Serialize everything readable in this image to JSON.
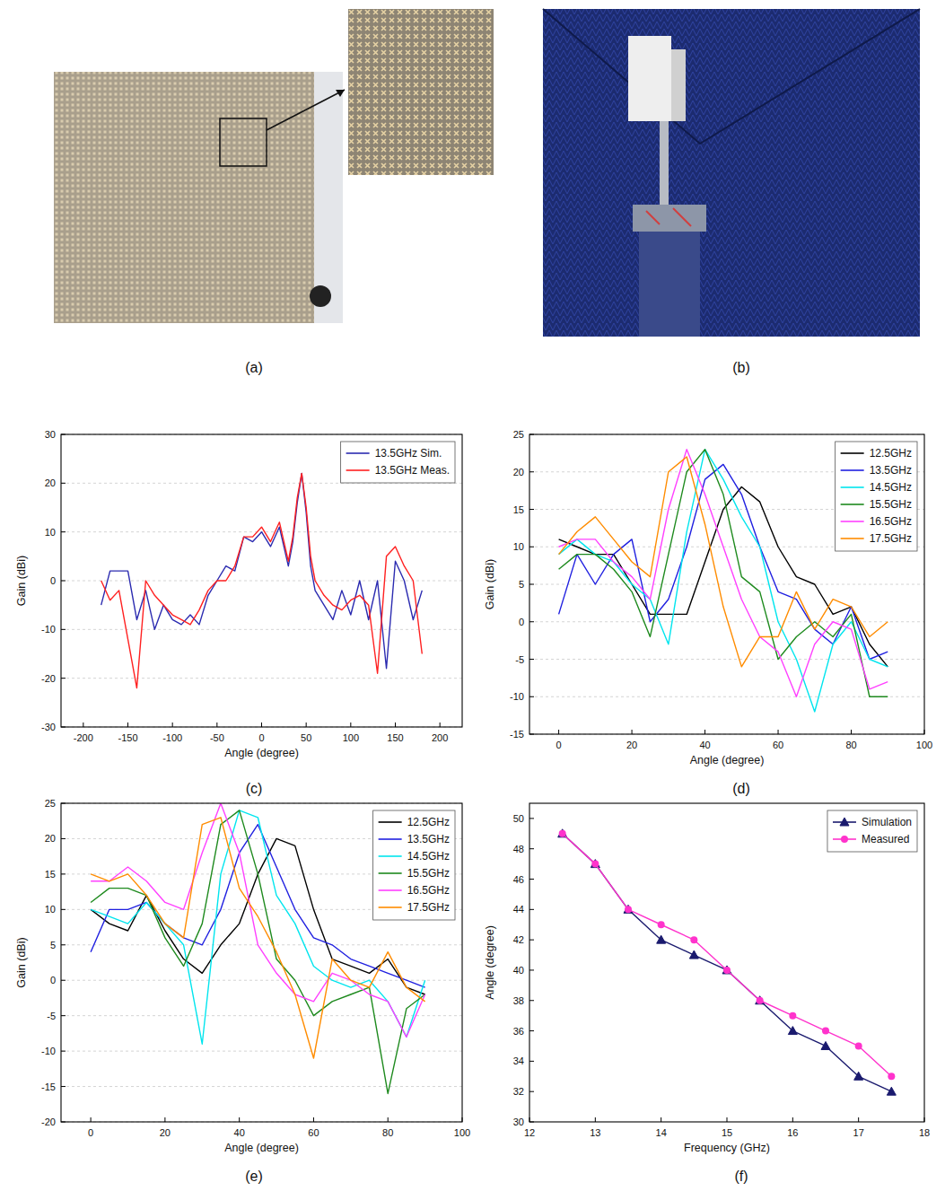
{
  "figure": {
    "panel_labels": [
      "(a)",
      "(b)",
      "(c)",
      "(d)",
      "(e)",
      "(f)"
    ]
  },
  "chart_data": [
    {
      "type": "line",
      "x_label": "Angle (degree)",
      "y_label": "Gain (dBi)",
      "xlim": [
        -225,
        225
      ],
      "xticks": [
        -200,
        -150,
        -100,
        -50,
        0,
        50,
        100,
        150,
        200
      ],
      "ylim": [
        -30,
        30
      ],
      "yticks": [
        -30,
        -20,
        -10,
        0,
        10,
        20,
        30
      ],
      "grid": true,
      "legend": "top-right",
      "x": [
        -180,
        -170,
        -160,
        -150,
        -140,
        -130,
        -120,
        -110,
        -100,
        -90,
        -80,
        -70,
        -60,
        -50,
        -40,
        -30,
        -20,
        -10,
        0,
        10,
        20,
        30,
        35,
        40,
        45,
        50,
        55,
        60,
        70,
        80,
        90,
        100,
        110,
        120,
        130,
        140,
        150,
        160,
        170,
        180
      ],
      "series": [
        {
          "name": "13.5GHz Sim.",
          "color": "#2b2bb0",
          "line_style": "solid",
          "values": [
            -5,
            2,
            2,
            2,
            -8,
            -2,
            -10,
            -5,
            -8,
            -9,
            -7,
            -9,
            -3,
            0,
            3,
            2,
            9,
            8,
            10,
            7,
            11,
            3,
            8,
            16,
            22,
            14,
            3,
            -2,
            -5,
            -8,
            -2,
            -7,
            0,
            -8,
            0,
            -18,
            4,
            0,
            -8,
            -2
          ]
        },
        {
          "name": "13.5GHz Meas.",
          "color": "#ff2020",
          "line_style": "solid",
          "values": [
            0,
            -4,
            -2,
            -12,
            -22,
            0,
            -3,
            -5,
            -7,
            -8,
            -9,
            -6,
            -2,
            0,
            0,
            3,
            9,
            9,
            11,
            8,
            12,
            4,
            9,
            17,
            22,
            15,
            5,
            0,
            -3,
            -5,
            -6,
            -4,
            -3,
            -5,
            -19,
            5,
            7,
            3,
            0,
            -15
          ]
        }
      ]
    },
    {
      "type": "line",
      "x_label": "Angle (degree)",
      "y_label": "Gain (dBi)",
      "xlim": [
        -8,
        100
      ],
      "xticks": [
        0,
        20,
        40,
        60,
        80,
        100
      ],
      "ylim": [
        -15,
        25
      ],
      "yticks": [
        -15,
        -10,
        -5,
        0,
        5,
        10,
        15,
        20,
        25
      ],
      "grid": true,
      "legend": "top-right",
      "x": [
        0,
        5,
        10,
        15,
        20,
        25,
        30,
        35,
        40,
        45,
        50,
        55,
        60,
        65,
        70,
        75,
        80,
        85,
        90
      ],
      "series": [
        {
          "name": "12.5GHz",
          "color": "#000000",
          "line_style": "solid",
          "values": [
            11,
            10,
            9,
            9,
            5,
            1,
            1,
            1,
            8,
            15,
            18,
            16,
            10,
            6,
            5,
            1,
            2,
            -3,
            -6
          ]
        },
        {
          "name": "13.5GHz",
          "color": "#2020e0",
          "line_style": "solid",
          "values": [
            1,
            9,
            5,
            9,
            11,
            0,
            3,
            10,
            19,
            21,
            17,
            10,
            4,
            3,
            -1,
            -3,
            2,
            -5,
            -4
          ]
        },
        {
          "name": "14.5GHz",
          "color": "#00e5ee",
          "line_style": "solid",
          "values": [
            9,
            11,
            9,
            8,
            5,
            3,
            -3,
            12,
            23,
            19,
            14,
            10,
            0,
            -5,
            -12,
            -3,
            0,
            -5,
            -6
          ]
        },
        {
          "name": "15.5GHz",
          "color": "#1e8a1e",
          "line_style": "solid",
          "values": [
            7,
            9,
            9,
            7,
            4,
            -2,
            9,
            20,
            23,
            17,
            6,
            4,
            -5,
            -2,
            0,
            -2,
            1,
            -10,
            -10
          ]
        },
        {
          "name": "16.5GHz",
          "color": "#ff40ff",
          "line_style": "solid",
          "values": [
            10,
            11,
            11,
            8,
            6,
            3,
            15,
            23,
            17,
            10,
            3,
            -2,
            -4,
            -10,
            -3,
            0,
            -1,
            -9,
            -8
          ]
        },
        {
          "name": "17.5GHz",
          "color": "#ff8c00",
          "line_style": "solid",
          "values": [
            9,
            12,
            14,
            11,
            8,
            6,
            20,
            22,
            13,
            2,
            -6,
            -2,
            -2,
            4,
            -1,
            3,
            2,
            -2,
            0
          ]
        }
      ]
    },
    {
      "type": "line",
      "x_label": "Angle (degree)",
      "y_label": "Gain (dBi)",
      "xlim": [
        -8,
        100
      ],
      "xticks": [
        0,
        20,
        40,
        60,
        80,
        100
      ],
      "ylim": [
        -20,
        25
      ],
      "yticks": [
        -20,
        -15,
        -10,
        -5,
        0,
        5,
        10,
        15,
        20,
        25
      ],
      "grid": true,
      "legend": "top-right",
      "x": [
        0,
        5,
        10,
        15,
        20,
        25,
        30,
        35,
        40,
        45,
        50,
        55,
        60,
        65,
        70,
        75,
        80,
        85,
        90
      ],
      "series": [
        {
          "name": "12.5GHz",
          "color": "#000000",
          "line_style": "solid",
          "values": [
            10,
            8,
            7,
            12,
            7,
            3,
            1,
            5,
            8,
            15,
            20,
            19,
            10,
            3,
            2,
            1,
            3,
            -1,
            -2
          ]
        },
        {
          "name": "13.5GHz",
          "color": "#2020e0",
          "line_style": "solid",
          "values": [
            4,
            10,
            10,
            11,
            8,
            6,
            5,
            10,
            18,
            22,
            16,
            10,
            6,
            5,
            3,
            2,
            1,
            0,
            -1
          ]
        },
        {
          "name": "14.5GHz",
          "color": "#00e5ee",
          "line_style": "solid",
          "values": [
            10,
            9,
            8,
            11,
            8,
            5,
            -9,
            15,
            24,
            23,
            12,
            8,
            2,
            0,
            -1,
            0,
            -3,
            -8,
            0
          ]
        },
        {
          "name": "15.5GHz",
          "color": "#1e8a1e",
          "line_style": "solid",
          "values": [
            11,
            13,
            13,
            12,
            6,
            2,
            8,
            22,
            24,
            15,
            3,
            0,
            -5,
            -3,
            -2,
            -1,
            -16,
            -4,
            -2
          ]
        },
        {
          "name": "16.5GHz",
          "color": "#ff40ff",
          "line_style": "solid",
          "values": [
            14,
            14,
            16,
            14,
            11,
            10,
            18,
            25,
            18,
            5,
            1,
            -2,
            -3,
            1,
            0,
            -2,
            -3,
            -8,
            -2
          ]
        },
        {
          "name": "17.5GHz",
          "color": "#ff8c00",
          "line_style": "solid",
          "values": [
            15,
            14,
            15,
            12,
            8,
            6,
            22,
            23,
            13,
            9,
            4,
            -2,
            -11,
            3,
            0,
            -1,
            4,
            -1,
            -3
          ]
        }
      ]
    },
    {
      "type": "line",
      "x_label": "Frequency (GHz)",
      "y_label": "Angle (degree)",
      "xlim": [
        12,
        18
      ],
      "xticks": [
        12,
        13,
        14,
        15,
        16,
        17,
        18
      ],
      "ylim": [
        30,
        51
      ],
      "yticks": [
        30,
        32,
        34,
        36,
        38,
        40,
        42,
        44,
        46,
        48,
        50
      ],
      "legend": "top-right",
      "x": [
        12.5,
        13,
        13.5,
        14,
        14.5,
        15,
        15.5,
        16,
        16.5,
        17,
        17.5
      ],
      "series": [
        {
          "name": "Simulation",
          "color": "#1a1a6e",
          "marker": "triangle",
          "line_style": "solid",
          "values": [
            49,
            47,
            44,
            42,
            41,
            40,
            38,
            36,
            35,
            33,
            32
          ]
        },
        {
          "name": "Measured",
          "color": "#ff33cc",
          "marker": "circle",
          "line_style": "solid",
          "values": [
            49,
            47,
            44,
            43,
            42,
            40,
            38,
            37,
            36,
            35,
            33
          ]
        }
      ]
    }
  ]
}
